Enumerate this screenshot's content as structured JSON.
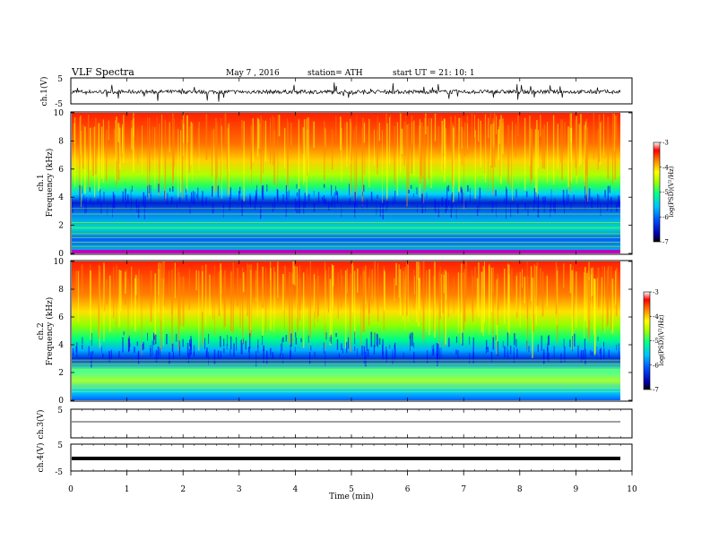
{
  "header": {
    "title": "VLF  Spectra",
    "date": "May 7  , 2016",
    "station": "station= ATH",
    "start_ut": "start  UT  =    21: 10: 1"
  },
  "chart_data": [
    {
      "type": "line",
      "name": "ch1-waveform",
      "ylabel": "ch.1(V)",
      "ylim": [
        -5,
        5
      ],
      "yticks": [
        "5",
        "-5"
      ],
      "xlim": [
        0,
        10
      ]
    },
    {
      "type": "heatmap",
      "name": "ch1-spectrogram",
      "channel_label": "ch.1",
      "ylabel": "Frequency  (kHz)",
      "ylim": [
        0,
        10
      ],
      "yticks": [
        "0",
        "2",
        "4",
        "6",
        "8",
        "10"
      ],
      "xlim": [
        0,
        10
      ],
      "colorbar": {
        "label": "log(PSD)(V²/Hz)",
        "range": [
          -7,
          -3
        ],
        "ticks": [
          "-3",
          "-4",
          "-5",
          "-6",
          "-7"
        ]
      }
    },
    {
      "type": "heatmap",
      "name": "ch2-spectrogram",
      "channel_label": "ch.2",
      "ylabel": "Frequency  (kHz)",
      "ylim": [
        0,
        10
      ],
      "yticks": [
        "0",
        "2",
        "4",
        "6",
        "8",
        "10"
      ],
      "xlim": [
        0,
        10
      ],
      "colorbar": {
        "label": "log(PSD)(V²/Hz)",
        "range": [
          -7,
          -3
        ],
        "ticks": [
          "-3",
          "-4",
          "-5",
          "-6",
          "-7"
        ]
      }
    },
    {
      "type": "line",
      "name": "ch3-waveform",
      "ylabel": "ch.3(V)",
      "ylim": [
        -5,
        5
      ],
      "yticks": [
        "5"
      ],
      "xlim": [
        0,
        10
      ]
    },
    {
      "type": "line",
      "name": "ch4-waveform",
      "ylabel": "ch.4(V)",
      "ylim": [
        -5,
        5
      ],
      "yticks": [
        "5",
        "-5"
      ],
      "xlim": [
        0,
        10
      ]
    }
  ],
  "xaxis": {
    "label": "Time  (min)",
    "ticks": [
      "0",
      "1",
      "2",
      "3",
      "4",
      "5",
      "6",
      "7",
      "8",
      "9",
      "10"
    ]
  },
  "colors": {
    "colormap": [
      "#000000",
      "#0000ff",
      "#00a0ff",
      "#00ffaa",
      "#aaff00",
      "#ffff00",
      "#ff8800",
      "#ff0000",
      "#ffffff"
    ]
  }
}
